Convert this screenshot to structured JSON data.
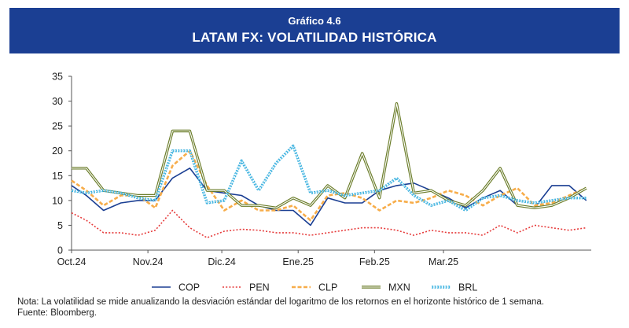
{
  "header": {
    "supertitle": "Gráfico 4.6",
    "title": "LATAM FX: VOLATILIDAD HISTÓRICA"
  },
  "notes": {
    "nota": "Nota: La volatilidad se mide anualizando la desviación estándar del logaritmo de los retornos en el horizonte histórico de 1 semana.",
    "fuente": "Fuente: Bloomberg."
  },
  "chart_data": {
    "type": "line",
    "title": "LATAM FX: VOLATILIDAD HISTÓRICA",
    "xlabel": "",
    "ylabel": "",
    "ylim": [
      0,
      35
    ],
    "yticks": [
      0,
      5,
      10,
      15,
      20,
      25,
      30,
      35
    ],
    "xlim": [
      "2024-10-01",
      "2025-04-30"
    ],
    "x_ticks": [
      {
        "date": "2024-10-01",
        "label": "Oct.24"
      },
      {
        "date": "2024-11-01",
        "label": "Nov.24"
      },
      {
        "date": "2024-12-01",
        "label": "Dic.24"
      },
      {
        "date": "2025-01-01",
        "label": "Ene.25"
      },
      {
        "date": "2025-02-01",
        "label": "Feb.25"
      },
      {
        "date": "2025-03-01",
        "label": "Mar.25"
      }
    ],
    "grid": false,
    "legend_position": "bottom",
    "x": [
      "2024-10-01",
      "2024-10-07",
      "2024-10-14",
      "2024-10-21",
      "2024-10-28",
      "2024-11-04",
      "2024-11-11",
      "2024-11-18",
      "2024-11-25",
      "2024-12-02",
      "2024-12-09",
      "2024-12-16",
      "2024-12-23",
      "2024-12-30",
      "2025-01-06",
      "2025-01-13",
      "2025-01-20",
      "2025-01-27",
      "2025-02-03",
      "2025-02-10",
      "2025-02-17",
      "2025-02-24",
      "2025-03-03",
      "2025-03-10",
      "2025-03-17",
      "2025-03-24",
      "2025-03-31",
      "2025-04-07",
      "2025-04-14",
      "2025-04-21",
      "2025-04-28"
    ],
    "series": [
      {
        "name": "COP",
        "color": "#1b3f93",
        "style": "solid",
        "values": [
          13,
          11,
          8,
          9.5,
          10,
          10,
          14.5,
          16.5,
          12,
          11.5,
          11,
          9,
          8,
          8,
          5,
          10.5,
          9.5,
          9.5,
          12,
          13,
          13.5,
          12,
          10.5,
          8.5,
          10.5,
          12,
          9,
          8.5,
          13,
          13,
          10
        ]
      },
      {
        "name": "PEN",
        "color": "#e63c3c",
        "style": "dotted",
        "values": [
          7.5,
          6,
          3.5,
          3.5,
          3,
          4,
          8,
          4.5,
          2.5,
          3.8,
          4.2,
          4,
          3.5,
          3.5,
          3,
          3.5,
          4,
          4.5,
          4.5,
          4,
          3,
          4,
          3.5,
          3.5,
          3,
          5,
          3.5,
          5,
          4.5,
          4,
          4.5
        ]
      },
      {
        "name": "CLP",
        "color": "#f7ad4a",
        "style": "dashed",
        "values": [
          14,
          12,
          9,
          11,
          11,
          8.5,
          17,
          20,
          13,
          8,
          10,
          8,
          8,
          9,
          6,
          11,
          11.5,
          10.5,
          8,
          10,
          9.5,
          10.5,
          12,
          11,
          9,
          11,
          12.5,
          9,
          9.5,
          11,
          12.5
        ]
      },
      {
        "name": "MXN",
        "color": "#6b7d2a",
        "style": "double",
        "values": [
          16.5,
          16.5,
          12,
          11.5,
          11,
          11,
          24,
          24,
          12,
          12,
          9,
          9,
          8.5,
          10.5,
          9,
          13,
          10.5,
          19.5,
          10.5,
          29.5,
          11.5,
          12,
          10,
          9,
          12,
          16.5,
          9,
          8.5,
          9,
          10.5,
          12.5
        ]
      },
      {
        "name": "BRL",
        "color": "#3fb3e0",
        "style": "beaded",
        "values": [
          12,
          11.5,
          12,
          11.5,
          10.5,
          10,
          20,
          20,
          9.5,
          10,
          18,
          12,
          17.5,
          21,
          11.5,
          12,
          11,
          11.5,
          12,
          14.5,
          11,
          9,
          10,
          8,
          10.5,
          11,
          10,
          9.5,
          10,
          10.5,
          10.5
        ]
      }
    ]
  }
}
